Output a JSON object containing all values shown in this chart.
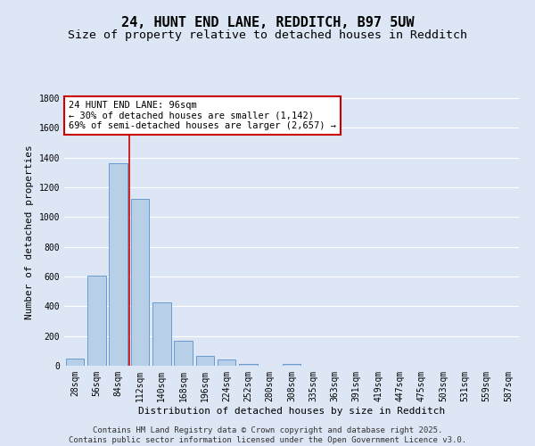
{
  "title_line1": "24, HUNT END LANE, REDDITCH, B97 5UW",
  "title_line2": "Size of property relative to detached houses in Redditch",
  "xlabel": "Distribution of detached houses by size in Redditch",
  "ylabel": "Number of detached properties",
  "bin_labels": [
    "28sqm",
    "56sqm",
    "84sqm",
    "112sqm",
    "140sqm",
    "168sqm",
    "196sqm",
    "224sqm",
    "252sqm",
    "280sqm",
    "308sqm",
    "335sqm",
    "363sqm",
    "391sqm",
    "419sqm",
    "447sqm",
    "475sqm",
    "503sqm",
    "531sqm",
    "559sqm",
    "587sqm"
  ],
  "bar_values": [
    50,
    605,
    1365,
    1125,
    425,
    170,
    65,
    40,
    15,
    0,
    15,
    0,
    0,
    0,
    0,
    0,
    0,
    0,
    0,
    0,
    0
  ],
  "bar_color": "#b8cfe8",
  "bar_edge_color": "#5b8fc9",
  "background_color": "#dce6f5",
  "grid_color": "#ffffff",
  "ylim": [
    0,
    1800
  ],
  "yticks": [
    0,
    200,
    400,
    600,
    800,
    1000,
    1200,
    1400,
    1600,
    1800
  ],
  "vline_color": "#cc0000",
  "annotation_title": "24 HUNT END LANE: 96sqm",
  "annotation_line1": "← 30% of detached houses are smaller (1,142)",
  "annotation_line2": "69% of semi-detached houses are larger (2,657) →",
  "annotation_box_color": "#cc0000",
  "footer_line1": "Contains HM Land Registry data © Crown copyright and database right 2025.",
  "footer_line2": "Contains public sector information licensed under the Open Government Licence v3.0.",
  "title_fontsize": 11,
  "subtitle_fontsize": 9.5,
  "axis_label_fontsize": 8,
  "tick_fontsize": 7,
  "annotation_fontsize": 7.5,
  "footer_fontsize": 6.5
}
